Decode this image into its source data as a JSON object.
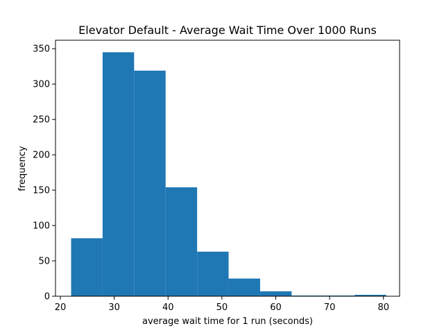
{
  "chart_data": {
    "type": "bar",
    "subtype": "histogram",
    "title": "Elevator Default - Average Wait Time Over 1000 Runs",
    "xlabel": "average wait time for 1 run (seconds)",
    "ylabel": "frequency",
    "xlim": [
      19.1,
      83.0
    ],
    "ylim": [
      0,
      362
    ],
    "xticks": [
      20,
      30,
      40,
      50,
      60,
      70,
      80
    ],
    "yticks": [
      0,
      50,
      100,
      150,
      200,
      250,
      300,
      350
    ],
    "bin_edges": [
      22.0,
      27.85,
      33.7,
      39.55,
      45.4,
      51.25,
      57.1,
      62.95,
      68.8,
      74.65,
      80.5
    ],
    "values": [
      82,
      345,
      319,
      154,
      63,
      25,
      7,
      1,
      1,
      2
    ],
    "grid": false,
    "legend": "none",
    "bar_color": "#1f77b4"
  }
}
